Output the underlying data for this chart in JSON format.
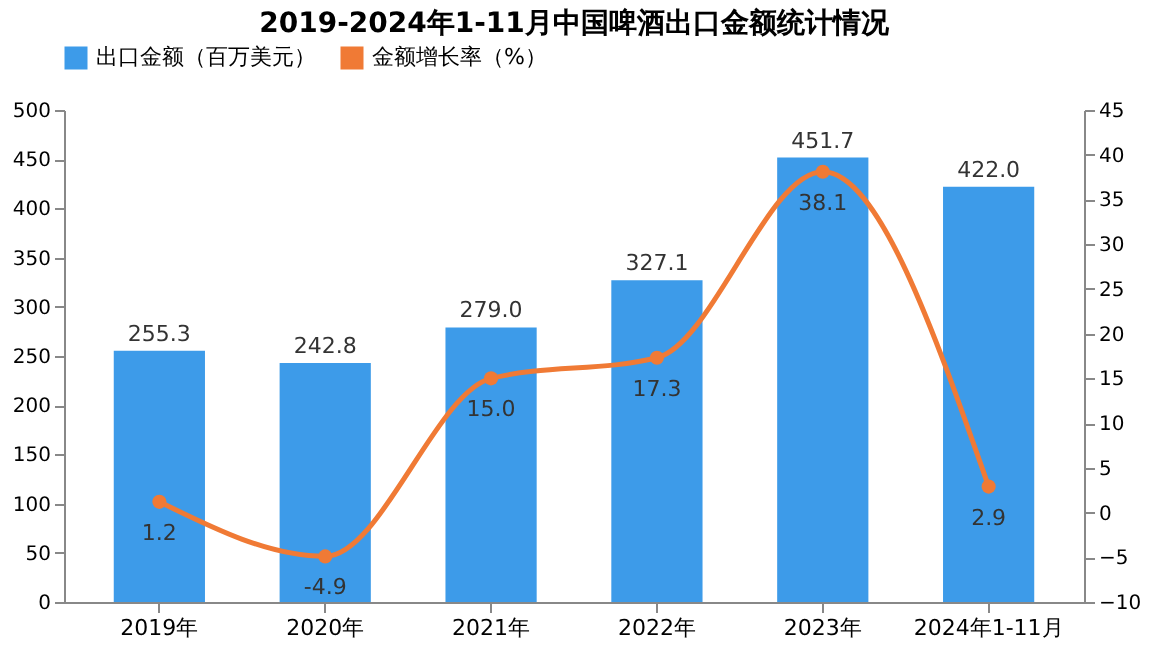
{
  "chart_data": {
    "type": "bar",
    "title": "2019-2024年1-11月中国啤酒出口金额统计情况",
    "categories": [
      "2019年",
      "2020年",
      "2021年",
      "2022年",
      "2023年",
      "2024年1-11月"
    ],
    "series": [
      {
        "name": "出口金额（百万美元）",
        "color": "#3d9be9",
        "values": [
          255.3,
          242.8,
          279.0,
          327.1,
          451.7,
          422.0
        ],
        "value_labels": [
          "255.3",
          "242.8",
          "279.0",
          "327.1",
          "451.7",
          "422.0"
        ]
      },
      {
        "name": "金额增长率（%）",
        "type": "line",
        "axis": "y2",
        "color": "#f07a35",
        "marker": "circle",
        "values": [
          1.2,
          -4.9,
          15.0,
          17.3,
          38.1,
          2.9
        ],
        "value_labels": [
          "1.2",
          "-4.9",
          "15.0",
          "17.3",
          "38.1",
          "2.9"
        ]
      }
    ],
    "ylim": [
      0,
      500
    ],
    "yticks": [
      0,
      50,
      100,
      150,
      200,
      250,
      300,
      350,
      400,
      450,
      500
    ],
    "y2lim": [
      -10,
      45
    ],
    "y2ticks": [
      -10,
      -5,
      0,
      5,
      10,
      15,
      20,
      25,
      30,
      35,
      40,
      45
    ],
    "grid": false,
    "legend": "top"
  }
}
